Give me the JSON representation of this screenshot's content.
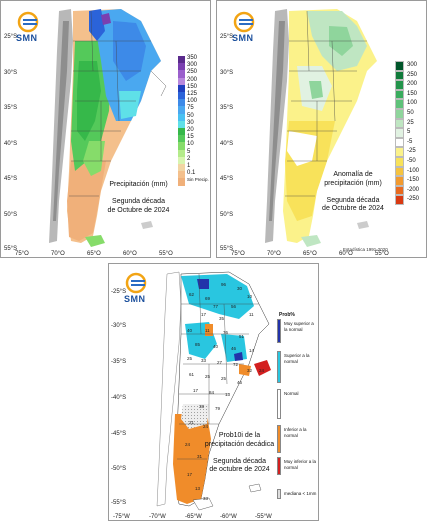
{
  "logo": {
    "text": "SMN"
  },
  "panel1": {
    "title_lines": [
      "Precipitación (mm)",
      "",
      "Segunda década",
      "de Octubre de 2024"
    ],
    "legend": [
      {
        "label": "350",
        "color": "#5a2a8c"
      },
      {
        "label": "300",
        "color": "#7a3fb0"
      },
      {
        "label": "250",
        "color": "#9a5fcc"
      },
      {
        "label": "200",
        "color": "#b888dd"
      },
      {
        "label": "150",
        "color": "#1f3fbf"
      },
      {
        "label": "125",
        "color": "#2b63d9"
      },
      {
        "label": "100",
        "color": "#3d8ae8"
      },
      {
        "label": "75",
        "color": "#4aa8f0"
      },
      {
        "label": "50",
        "color": "#49c1f2"
      },
      {
        "label": "30",
        "color": "#5fe0e8"
      },
      {
        "label": "20",
        "color": "#36b84a"
      },
      {
        "label": "15",
        "color": "#54c95a"
      },
      {
        "label": "10",
        "color": "#86dc6a"
      },
      {
        "label": "5",
        "color": "#b4eb8a"
      },
      {
        "label": "2",
        "color": "#d8f5b0"
      },
      {
        "label": "1",
        "color": "#f2d5a3"
      },
      {
        "label": "0.1",
        "color": "#f4c08c"
      },
      {
        "label": "Sin Precip.",
        "color": "#f0b07a"
      }
    ]
  },
  "panel2": {
    "title_lines": [
      "Anomalía de",
      "precipitación (mm)",
      "",
      "Segunda década",
      "de Octubre de 2024"
    ],
    "legend": [
      {
        "label": "300",
        "color": "#00552a"
      },
      {
        "label": "250",
        "color": "#0f7a3a"
      },
      {
        "label": "200",
        "color": "#23944b"
      },
      {
        "label": "150",
        "color": "#3aac5e"
      },
      {
        "label": "100",
        "color": "#5fc27a"
      },
      {
        "label": "50",
        "color": "#8fd59c"
      },
      {
        "label": "25",
        "color": "#bfe6c2"
      },
      {
        "label": "5",
        "color": "#e1f2e2"
      },
      {
        "label": "-5",
        "color": "#ffffff"
      },
      {
        "label": "-25",
        "color": "#fbf28a"
      },
      {
        "label": "-50",
        "color": "#f8e25a"
      },
      {
        "label": "-100",
        "color": "#f5c33f"
      },
      {
        "label": "-150",
        "color": "#f29a2e"
      },
      {
        "label": "-200",
        "color": "#e86a1f"
      },
      {
        "label": "-250",
        "color": "#d93a12"
      }
    ],
    "footnote": "Estadística 1991-2020"
  },
  "panel3": {
    "title_lines": [
      "Prob10i de la",
      "precipitación decádica",
      "",
      "Segunda década",
      "de octubre de 2024"
    ],
    "legend_title": "Prob%",
    "legend": [
      {
        "label": "Muy superior a la normal",
        "color": "#2233aa"
      },
      {
        "label": "Superior a la normal",
        "color": "#29c6e0"
      },
      {
        "label": "Normal",
        "color": "#ffffff"
      },
      {
        "label": "Inferior a la normal",
        "color": "#f08c2a"
      },
      {
        "label": "Muy inferior a la normal",
        "color": "#d31f1f"
      },
      {
        "label": "mediana < 1mm",
        "color": "#dddddd"
      }
    ]
  },
  "axes": {
    "top_lat": [
      "25°S",
      "30°S",
      "35°S",
      "40°S",
      "45°S",
      "50°S",
      "55°S"
    ],
    "top_lon": [
      "75°O",
      "70°O",
      "65°O",
      "60°O",
      "55°O"
    ],
    "bottom_lat": [
      "-25°S",
      "-30°S",
      "-35°S",
      "-40°S",
      "-45°S",
      "-50°S",
      "-55°S"
    ],
    "bottom_lon": [
      "-75°W",
      "-70°W",
      "-65°W",
      "-60°W",
      "-55°W"
    ]
  },
  "station_values": [
    "96",
    "30",
    "10",
    "62",
    "69",
    "77",
    "56",
    "17",
    "35",
    "11",
    "40",
    "11",
    "76",
    "51",
    "85",
    "40",
    "46",
    "14",
    "25",
    "33",
    "27",
    "72",
    "32",
    "24",
    "61",
    "25",
    "25",
    "46",
    "17",
    "84",
    "13",
    "38",
    "79",
    "21",
    "24",
    "24",
    "31",
    "17",
    "13",
    "33"
  ]
}
